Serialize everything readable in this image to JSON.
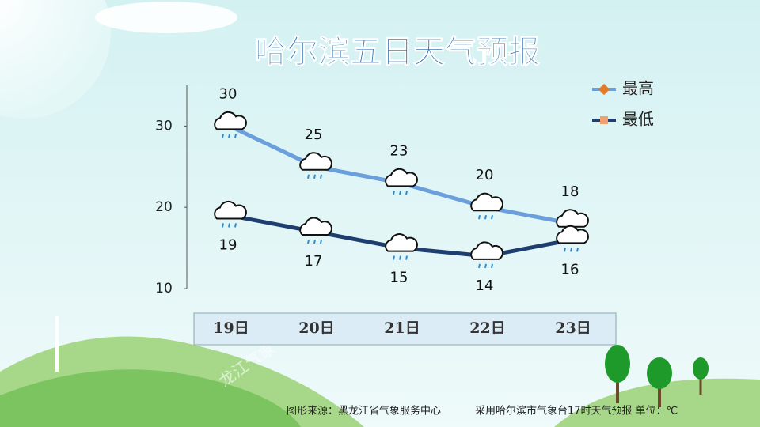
{
  "chart_data": {
    "type": "line",
    "title": "哈尔滨五日天气预报",
    "categories": [
      "19日",
      "20日",
      "21日",
      "22日",
      "23日"
    ],
    "series": [
      {
        "name": "最高",
        "color": "#6a9fdc",
        "marker_color": "#e07b2c",
        "values": [
          30,
          25,
          23,
          20,
          18
        ]
      },
      {
        "name": "最低",
        "color": "#1f3e70",
        "marker_color": "#f0a070",
        "values": [
          19,
          17,
          15,
          14,
          16
        ]
      }
    ],
    "ylim": [
      10,
      35
    ],
    "yticks": [
      10,
      20,
      30
    ],
    "source": "图形来源：黑龙江省气象服务中心",
    "note": "采用哈尔滨市气象台17时天气预报 单位：℃",
    "watermark": "龙江气象"
  }
}
